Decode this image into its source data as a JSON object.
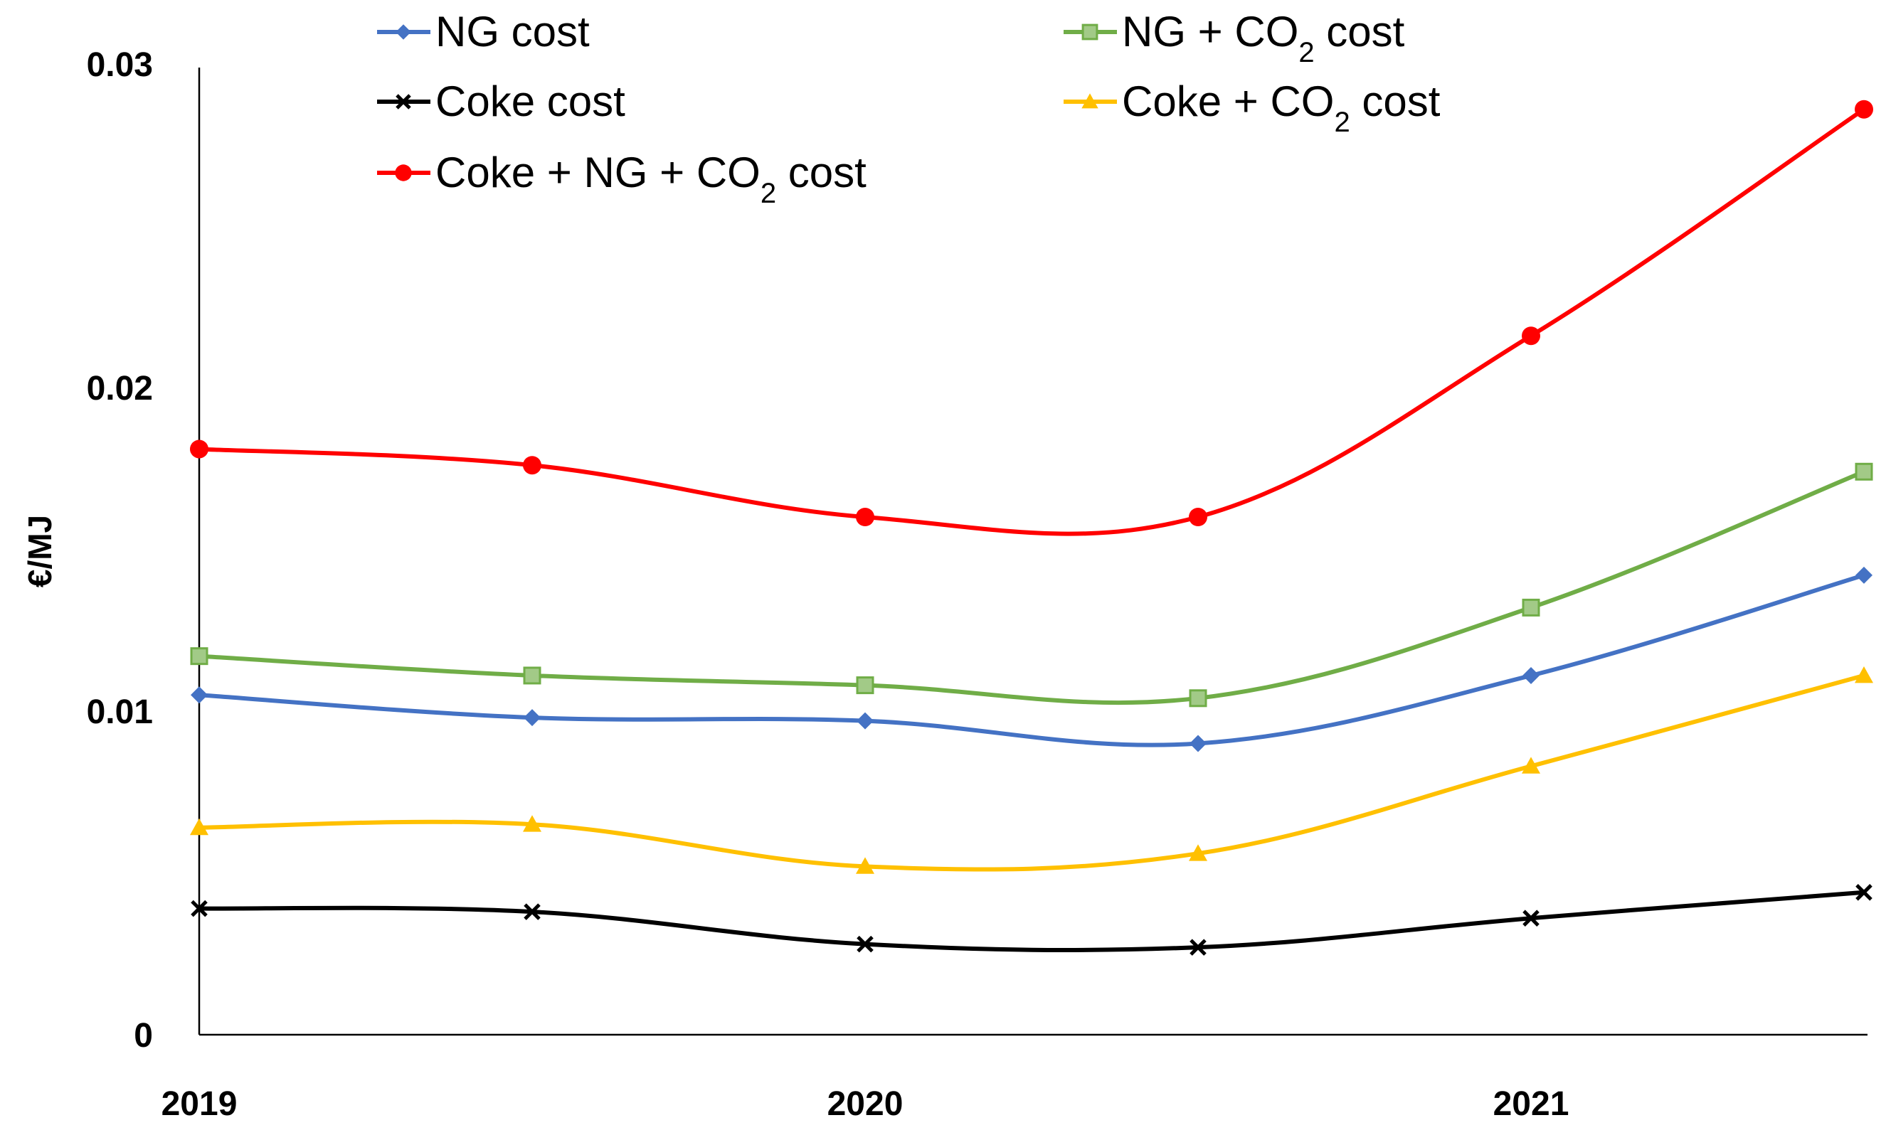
{
  "chart_data": {
    "type": "line",
    "title": "",
    "xlabel": "",
    "ylabel": "€/MJ",
    "ylim": [
      0,
      0.03
    ],
    "y_ticks": [
      "0",
      "0.01",
      "0.02",
      "0.03"
    ],
    "x_tick_labels": [
      {
        "label": "2019",
        "x": 0
      },
      {
        "label": "2020",
        "x": 2
      },
      {
        "label": "2021",
        "x": 4
      }
    ],
    "x": [
      0,
      1,
      2,
      3,
      4,
      5
    ],
    "series": [
      {
        "name": "NG cost",
        "name_parts": [
          "NG cost"
        ],
        "color": "#4472C4",
        "marker": "diamond",
        "values": [
          0.0105,
          0.0098,
          0.0097,
          0.009,
          0.0111,
          0.0142
        ]
      },
      {
        "name": "NG + CO2 cost",
        "name_parts": [
          "NG + CO",
          "2",
          " cost"
        ],
        "color": "#70AD47",
        "marker": "square",
        "values": [
          0.0117,
          0.0111,
          0.0108,
          0.0104,
          0.0132,
          0.0174
        ]
      },
      {
        "name": "Coke cost",
        "name_parts": [
          "Coke cost"
        ],
        "color": "#000000",
        "marker": "x",
        "values": [
          0.0039,
          0.0038,
          0.0028,
          0.0027,
          0.0036,
          0.0044
        ]
      },
      {
        "name": "Coke + CO2 cost",
        "name_parts": [
          "Coke + CO",
          "2",
          " cost"
        ],
        "color": "#FFC000",
        "marker": "triangle",
        "values": [
          0.0064,
          0.0065,
          0.0052,
          0.0056,
          0.0083,
          0.0111
        ]
      },
      {
        "name": "Coke + NG + CO2 cost",
        "name_parts": [
          "Coke + NG + CO",
          "2",
          " cost"
        ],
        "color": "#FF0000",
        "marker": "circle",
        "values": [
          0.0181,
          0.0176,
          0.016,
          0.016,
          0.0216,
          0.0286
        ]
      }
    ]
  }
}
